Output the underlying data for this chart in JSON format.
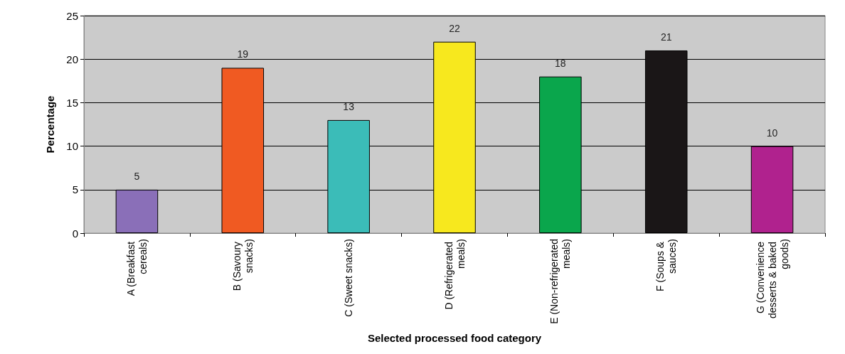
{
  "chart_data": {
    "type": "bar",
    "xlabel": "Selected processed food category",
    "ylabel": "Percentage",
    "categories": [
      "A (Breakfast cereals)",
      "B (Savoury snacks)",
      "C (Sweet snacks)",
      "D (Refrigerated meals)",
      "E (Non-refrigerated meals)",
      "F (Soups & sauces)",
      "G (Convenience desserts & baked goods)"
    ],
    "values": [
      5,
      19,
      13,
      22,
      18,
      21,
      10
    ],
    "colors": [
      "#8a6fb8",
      "#f05a22",
      "#3bbcb8",
      "#f7e81e",
      "#0aa64c",
      "#1a1617",
      "#b0228e"
    ],
    "ylim": [
      0,
      25
    ],
    "yticks": [
      0,
      5,
      10,
      15,
      20,
      25
    ],
    "grid": "y",
    "data_labels": true
  }
}
